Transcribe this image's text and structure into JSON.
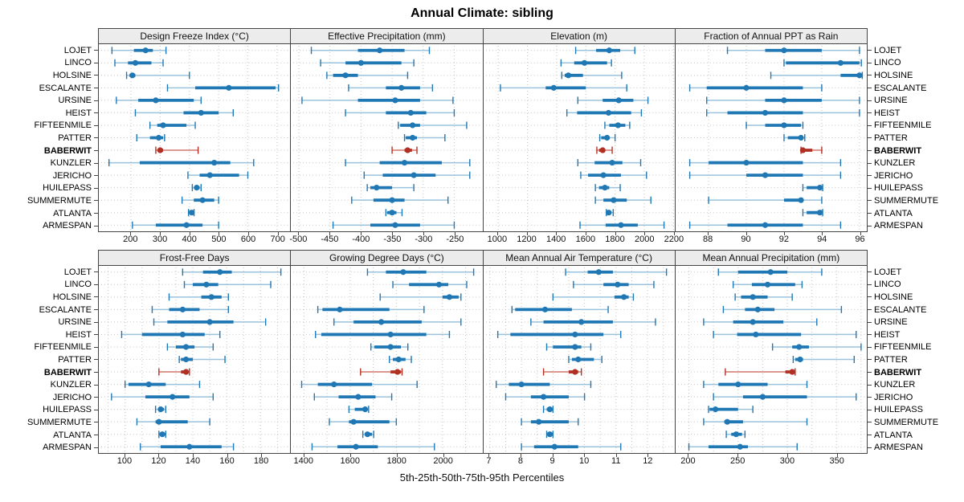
{
  "title": "Annual Climate: sibling",
  "xlabel": "5th-25th-50th-75th-95th Percentiles",
  "highlight_site": "BABERWIT",
  "colors": {
    "series": "#1f77b4",
    "series_light": "#9cc3dd",
    "highlight": "#b03024",
    "highlight_light": "#d2776c",
    "grid": "#c4c4c4",
    "header_bg": "#ececec",
    "border": "#444444"
  },
  "chart_data": {
    "type": "dotplot-percentiles",
    "percentile_labels": [
      "5th",
      "25th",
      "50th",
      "75th",
      "95th"
    ],
    "legend_position": "none",
    "grid": "dotted",
    "rows": [
      "LOJET",
      "LINCO",
      "HOLSINE",
      "ESCALANTE",
      "URSINE",
      "HEIST",
      "FIFTEENMILE",
      "PATTER",
      "BABERWIT",
      "KUNZLER",
      "JERICHO",
      "HUILEPASS",
      "SUMMERMUTE",
      "ATLANTA",
      "ARMESPAN"
    ],
    "panels": [
      {
        "title": "Design Freeze Index (°C)",
        "domain": [
          90,
          745
        ],
        "ticks": [
          200,
          300,
          400,
          500,
          600,
          700
        ],
        "grid": [
          200,
          300,
          400,
          500,
          600,
          700
        ],
        "values": [
          [
            135,
            210,
            250,
            275,
            320
          ],
          [
            145,
            190,
            215,
            270,
            310
          ],
          [
            185,
            195,
            205,
            215,
            400
          ],
          [
            325,
            420,
            535,
            695,
            705
          ],
          [
            150,
            225,
            285,
            415,
            440
          ],
          [
            215,
            380,
            440,
            500,
            550
          ],
          [
            265,
            290,
            310,
            390,
            420
          ],
          [
            220,
            265,
            295,
            310,
            315
          ],
          [
            285,
            295,
            300,
            310,
            430
          ],
          [
            125,
            230,
            485,
            540,
            620
          ],
          [
            395,
            435,
            470,
            570,
            600
          ],
          [
            410,
            420,
            425,
            435,
            440
          ],
          [
            375,
            415,
            445,
            485,
            500
          ],
          [
            397,
            403,
            408,
            413,
            416
          ],
          [
            205,
            285,
            390,
            445,
            500
          ]
        ]
      },
      {
        "title": "Effective Precipitation (mm)",
        "domain": [
          -513,
          -205
        ],
        "ticks": [
          -500,
          -450,
          -400,
          -350,
          -300,
          -250
        ],
        "grid": [
          -500,
          -450,
          -400,
          -350,
          -300,
          -250
        ],
        "values": [
          [
            -480,
            -405,
            -370,
            -330,
            -290
          ],
          [
            -465,
            -425,
            -400,
            -335,
            -315
          ],
          [
            -455,
            -445,
            -425,
            -405,
            -325
          ],
          [
            -420,
            -360,
            -335,
            -305,
            -285
          ],
          [
            -495,
            -405,
            -345,
            -305,
            -252
          ],
          [
            -425,
            -360,
            -320,
            -295,
            -250
          ],
          [
            -340,
            -337,
            -317,
            -305,
            -230
          ],
          [
            -330,
            -328,
            -317,
            -310,
            -265
          ],
          [
            -350,
            -330,
            -325,
            -318,
            -310
          ],
          [
            -425,
            -370,
            -330,
            -270,
            -225
          ],
          [
            -395,
            -365,
            -315,
            -280,
            -225
          ],
          [
            -390,
            -385,
            -375,
            -350,
            -315
          ],
          [
            -415,
            -380,
            -350,
            -330,
            -260
          ],
          [
            -360,
            -358,
            -350,
            -343,
            -334
          ],
          [
            -445,
            -385,
            -345,
            -305,
            -250
          ]
        ]
      },
      {
        "title": "Elevation (m)",
        "domain": [
          900,
          2210
        ],
        "ticks": [
          1000,
          1200,
          1400,
          1600,
          1800,
          2000,
          2200
        ],
        "grid": [
          1000,
          1200,
          1400,
          1600,
          1800,
          2000,
          2200
        ],
        "values": [
          [
            1530,
            1670,
            1760,
            1835,
            1935
          ],
          [
            1430,
            1520,
            1590,
            1745,
            1775
          ],
          [
            1435,
            1455,
            1480,
            1580,
            1845
          ],
          [
            1015,
            1325,
            1380,
            1600,
            1880
          ],
          [
            1545,
            1715,
            1825,
            1925,
            2025
          ],
          [
            1470,
            1540,
            1755,
            1910,
            1980
          ],
          [
            1730,
            1760,
            1820,
            1870,
            1900
          ],
          [
            1695,
            1705,
            1745,
            1760,
            1800
          ],
          [
            1675,
            1690,
            1715,
            1730,
            1780
          ],
          [
            1545,
            1660,
            1780,
            1850,
            1975
          ],
          [
            1565,
            1615,
            1720,
            1840,
            2015
          ],
          [
            1665,
            1690,
            1730,
            1760,
            1835
          ],
          [
            1665,
            1720,
            1790,
            1880,
            2045
          ],
          [
            1740,
            1750,
            1757,
            1770,
            1787
          ],
          [
            1560,
            1735,
            1840,
            1955,
            2135
          ]
        ]
      },
      {
        "title": "Fraction of Annual PPT as Rain",
        "domain": [
          86.25,
          96.4
        ],
        "ticks": [
          88,
          90,
          92,
          94,
          96
        ],
        "grid": [
          88,
          90,
          92,
          94,
          96
        ],
        "values": [
          [
            89,
            91,
            92,
            94,
            96
          ],
          [
            92,
            92.1,
            95,
            96,
            96.1
          ],
          [
            91.3,
            95,
            96,
            96.1,
            96.15
          ],
          [
            87,
            87.9,
            90,
            93,
            94
          ],
          [
            87.9,
            91,
            92,
            94,
            96
          ],
          [
            87.9,
            89,
            91,
            93,
            96
          ],
          [
            90,
            91,
            92,
            92.9,
            93
          ],
          [
            92,
            92.2,
            92.9,
            93,
            93.1
          ],
          [
            92.9,
            92.95,
            93,
            93.5,
            94
          ],
          [
            87,
            88,
            90,
            93,
            95
          ],
          [
            87,
            90,
            91,
            93,
            95
          ],
          [
            93,
            93.2,
            93.9,
            94,
            94.05
          ],
          [
            88,
            92,
            92.9,
            93,
            94
          ],
          [
            93,
            93.2,
            93.9,
            94,
            94.05
          ],
          [
            87,
            89,
            91,
            93,
            95
          ]
        ]
      },
      {
        "title": "Frost-Free Days",
        "domain": [
          84.5,
          197.5
        ],
        "ticks": [
          100,
          120,
          140,
          160,
          180
        ],
        "grid": [
          90,
          100,
          110,
          120,
          130,
          140,
          150,
          160,
          170,
          180,
          190
        ],
        "values": [
          [
            134,
            146,
            156,
            163,
            192
          ],
          [
            135,
            140,
            148,
            155,
            186
          ],
          [
            126,
            145,
            151,
            157,
            161
          ],
          [
            116,
            126,
            134,
            144,
            161
          ],
          [
            117,
            125,
            150,
            164,
            183
          ],
          [
            98,
            110,
            134,
            147,
            156
          ],
          [
            125,
            130,
            136,
            141,
            152
          ],
          [
            132,
            133,
            136,
            140,
            159
          ],
          [
            120,
            133,
            136,
            137,
            138
          ],
          [
            100,
            102,
            114,
            124,
            144
          ],
          [
            92,
            112,
            128,
            138,
            152
          ],
          [
            118,
            120,
            121,
            123,
            124
          ],
          [
            107,
            118,
            120,
            137,
            150
          ],
          [
            120,
            121,
            122,
            123,
            124
          ],
          [
            109,
            121,
            138,
            157,
            164
          ]
        ]
      },
      {
        "title": "Growing Degree Days (°C)",
        "domain": [
          1343,
          2172
        ],
        "ticks": [
          1400,
          1600,
          1800,
          2000
        ],
        "grid": [
          1400,
          1500,
          1600,
          1700,
          1800,
          1900,
          2000,
          2100
        ],
        "values": [
          [
            1675,
            1755,
            1830,
            1930,
            2135
          ],
          [
            1785,
            1855,
            1985,
            2025,
            2105
          ],
          [
            1730,
            2000,
            2030,
            2070,
            2080
          ],
          [
            1460,
            1480,
            1555,
            1770,
            1920
          ],
          [
            1530,
            1615,
            1735,
            1910,
            2080
          ],
          [
            1450,
            1475,
            1775,
            1930,
            2030
          ],
          [
            1690,
            1705,
            1775,
            1820,
            1850
          ],
          [
            1770,
            1785,
            1810,
            1840,
            1865
          ],
          [
            1645,
            1775,
            1805,
            1820,
            1825
          ],
          [
            1390,
            1460,
            1530,
            1695,
            1890
          ],
          [
            1445,
            1550,
            1635,
            1710,
            1780
          ],
          [
            1595,
            1620,
            1665,
            1672,
            1680
          ],
          [
            1510,
            1595,
            1615,
            1770,
            1800
          ],
          [
            1655,
            1665,
            1675,
            1695,
            1702
          ],
          [
            1435,
            1545,
            1625,
            1720,
            1965
          ]
        ]
      },
      {
        "title": "Mean Annual Air Temperature (°C)",
        "domain": [
          6.8,
          12.87
        ],
        "ticks": [
          7,
          8,
          9,
          10,
          11,
          12
        ],
        "grid": [
          7,
          7.5,
          8,
          8.5,
          9,
          9.5,
          10,
          10.5,
          11,
          11.5,
          12,
          12.5
        ],
        "values": [
          [
            9.4,
            10.1,
            10.45,
            10.9,
            12.6
          ],
          [
            9.65,
            10.6,
            11.05,
            11.4,
            12.2
          ],
          [
            9.0,
            10.95,
            11.25,
            11.4,
            11.55
          ],
          [
            7.7,
            7.8,
            8.75,
            9.6,
            10.75
          ],
          [
            8.3,
            8.7,
            9.9,
            10.9,
            12.25
          ],
          [
            7.25,
            7.65,
            9.7,
            10.6,
            11.15
          ],
          [
            8.8,
            9.0,
            9.7,
            9.9,
            10.2
          ],
          [
            9.5,
            9.6,
            9.8,
            10.3,
            10.55
          ],
          [
            8.7,
            9.5,
            9.7,
            9.8,
            9.9
          ],
          [
            7.2,
            7.6,
            8.0,
            8.9,
            10.2
          ],
          [
            7.5,
            8.3,
            8.7,
            9.5,
            10.0
          ],
          [
            8.7,
            8.8,
            8.9,
            8.95,
            9.0
          ],
          [
            8.0,
            8.3,
            8.55,
            9.5,
            9.8
          ],
          [
            8.8,
            8.85,
            8.9,
            8.95,
            9.0
          ],
          [
            8.0,
            8.4,
            9.05,
            9.8,
            11.15
          ]
        ]
      },
      {
        "title": "Mean Annual Precipitation (mm)",
        "domain": [
          186.5,
          381
        ],
        "ticks": [
          200,
          250,
          300,
          350
        ],
        "grid": [
          200,
          225,
          250,
          275,
          300,
          325,
          350,
          375
        ],
        "values": [
          [
            230,
            250,
            283,
            300,
            335
          ],
          [
            245,
            264,
            280,
            308,
            315
          ],
          [
            247,
            253,
            265,
            280,
            305
          ],
          [
            235,
            257,
            270,
            287,
            355
          ],
          [
            215,
            245,
            265,
            296,
            330
          ],
          [
            225,
            249,
            268,
            314,
            370
          ],
          [
            285,
            305,
            312,
            322,
            375
          ],
          [
            306,
            308,
            313,
            316,
            368
          ],
          [
            237,
            298,
            305,
            307,
            308
          ],
          [
            215,
            230,
            250,
            280,
            320
          ],
          [
            225,
            255,
            275,
            320,
            370
          ],
          [
            220,
            221,
            227,
            250,
            265
          ],
          [
            215,
            236,
            239,
            255,
            320
          ],
          [
            238,
            243,
            248,
            254,
            257
          ],
          [
            200,
            220,
            252,
            260,
            310
          ]
        ]
      }
    ]
  }
}
